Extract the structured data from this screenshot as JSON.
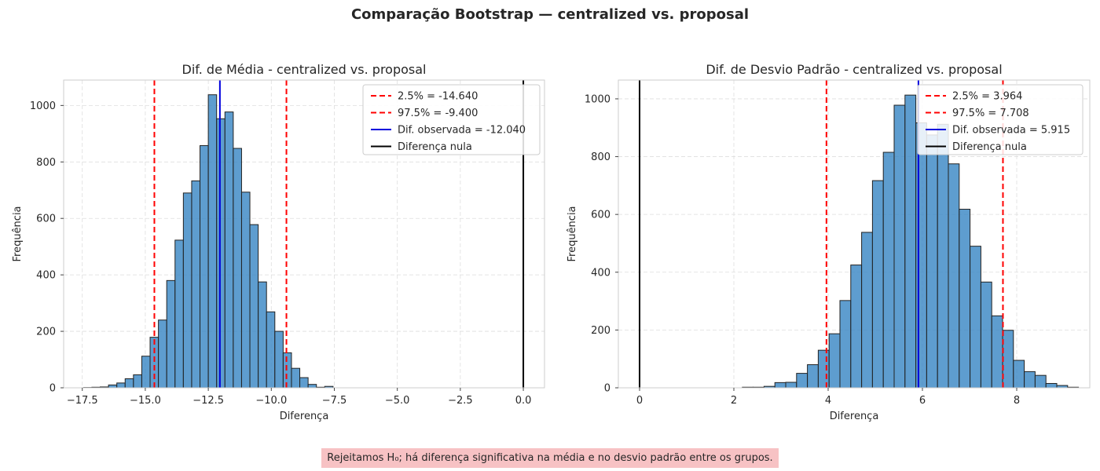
{
  "suptitle": "Comparação Bootstrap — centralized vs. proposal",
  "verdict": "Rejeitamos H₀; há diferença significativa na média e no desvio padrão entre os grupos.",
  "colors": {
    "bar": "#3b88c4",
    "ci": "#ff0000",
    "observed": "#0000dd",
    "null": "#000000",
    "grid": "#dedede"
  },
  "chart_data": [
    {
      "type": "bar",
      "title": "Dif. de Média - centralized vs. proposal",
      "xlabel": "Diferença",
      "ylabel": "Frequência",
      "xlim": [
        -18.24,
        0.84
      ],
      "ylim": [
        0,
        1090
      ],
      "xticks": [
        -17.5,
        -15.0,
        -12.5,
        -10.0,
        -7.5,
        -5.0,
        -2.5,
        0.0
      ],
      "xtick_labels": [
        "−17.5",
        "−15.0",
        "−12.5",
        "−10.0",
        "−7.5",
        "−5.0",
        "−2.5",
        "0.0"
      ],
      "yticks": [
        0,
        200,
        400,
        600,
        800,
        1000
      ],
      "ytick_labels": [
        "0",
        "200",
        "400",
        "600",
        "800",
        "1000"
      ],
      "grid": true,
      "legend_position": "top-right",
      "bin_start": -17.45,
      "bin_width": 0.33,
      "values": [
        1,
        2,
        3,
        10,
        17,
        32,
        46,
        112,
        179,
        240,
        380,
        523,
        690,
        733,
        858,
        1038,
        953,
        977,
        848,
        693,
        578,
        375,
        269,
        200,
        124,
        69,
        36,
        12,
        2,
        5
      ],
      "lines": [
        {
          "label": "2.5% = -14.640",
          "x": -14.64,
          "style": "dashed",
          "color": "#ff0000"
        },
        {
          "label": "97.5% = -9.400",
          "x": -9.4,
          "style": "dashed",
          "color": "#ff0000"
        },
        {
          "label": "Dif. observada = -12.040",
          "x": -12.04,
          "style": "solid",
          "color": "#0000dd"
        },
        {
          "label": "Diferença nula",
          "x": 0.0,
          "style": "solid",
          "color": "#000000"
        }
      ]
    },
    {
      "type": "bar",
      "title": "Dif. de Desvio Padrão - centralized vs. proposal",
      "xlabel": "Diferença",
      "ylabel": "Frequência",
      "xlim": [
        -0.45,
        9.55
      ],
      "ylim": [
        0,
        1065
      ],
      "xticks": [
        0,
        2,
        4,
        6,
        8
      ],
      "xtick_labels": [
        "0",
        "2",
        "4",
        "6",
        "8"
      ],
      "yticks": [
        0,
        200,
        400,
        600,
        800,
        1000
      ],
      "ytick_labels": [
        "0",
        "200",
        "400",
        "600",
        "800",
        "1000"
      ],
      "grid": true,
      "legend_position": "top-right",
      "bin_start": 2.18,
      "bin_width": 0.23,
      "values": [
        2,
        2,
        5,
        18,
        19,
        50,
        80,
        130,
        187,
        302,
        425,
        538,
        717,
        815,
        978,
        1013,
        917,
        875,
        912,
        775,
        618,
        490,
        366,
        249,
        199,
        95,
        56,
        43,
        15,
        8,
        2
      ],
      "lines": [
        {
          "label": "2.5% = 3.964",
          "x": 3.964,
          "style": "dashed",
          "color": "#ff0000"
        },
        {
          "label": "97.5% = 7.708",
          "x": 7.708,
          "style": "dashed",
          "color": "#ff0000"
        },
        {
          "label": "Dif. observada = 5.915",
          "x": 5.915,
          "style": "solid",
          "color": "#0000dd"
        },
        {
          "label": "Diferença nula",
          "x": 0.0,
          "style": "solid",
          "color": "#000000"
        }
      ]
    }
  ]
}
